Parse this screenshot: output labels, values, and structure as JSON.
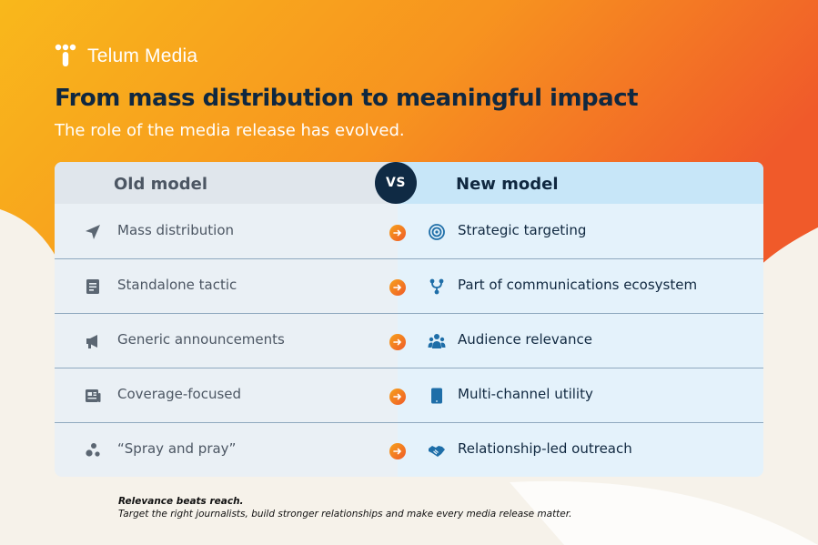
{
  "brand": {
    "name": "Telum Media"
  },
  "title": "From mass distribution to meaningful impact",
  "subtitle": "The role of the media release has evolved.",
  "table": {
    "old_header": "Old model",
    "vs_label": "VS",
    "new_header": "New model",
    "rows": [
      {
        "old": "Mass distribution",
        "old_icon": "paper-plane-icon",
        "new": "Strategic targeting",
        "new_icon": "target-icon"
      },
      {
        "old": "Standalone tactic",
        "old_icon": "document-icon",
        "new": "Part of communications ecosystem",
        "new_icon": "network-icon"
      },
      {
        "old": "Generic announcements",
        "old_icon": "megaphone-icon",
        "new": "Audience relevance",
        "new_icon": "audience-icon"
      },
      {
        "old": "Coverage-focused",
        "old_icon": "newspaper-icon",
        "new": "Multi-channel utility",
        "new_icon": "tablet-icon"
      },
      {
        "old": "“Spray and pray”",
        "old_icon": "scatter-dots-icon",
        "new": "Relationship-led outreach",
        "new_icon": "handshake-icon"
      }
    ]
  },
  "footnote": {
    "lead": "Relevance beats reach.",
    "body": "Target the right journalists, build stronger relationships and make every media release matter."
  },
  "colors": {
    "gradient_start": "#f9b81b",
    "gradient_end": "#f05a2a",
    "navy": "#0f2a44",
    "new_col_bg": "#e4f2fb",
    "old_col_bg": "#eaf0f5",
    "icon_blue": "#1e6ea8"
  }
}
